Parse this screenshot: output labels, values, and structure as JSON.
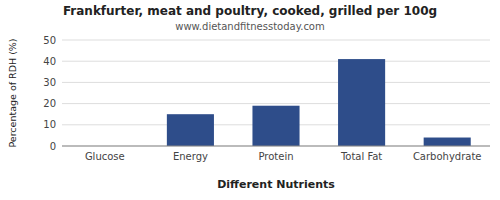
{
  "chart_data": {
    "type": "bar",
    "title": "Frankfurter, meat and poultry, cooked, grilled per 100g",
    "subtitle": "www.dietandfitnesstoday.com",
    "categories": [
      "Glucose",
      "Energy",
      "Protein",
      "Total Fat",
      "Carbohydrate"
    ],
    "values": [
      0,
      15,
      19,
      41,
      4
    ],
    "color": "#2e4d8a",
    "xlabel": "Different Nutrients",
    "ylabel": "Percentage of RDH (%)",
    "ylim": [
      0,
      50
    ],
    "yticks": [
      0,
      10,
      20,
      30,
      40,
      50
    ],
    "grid": true
  }
}
